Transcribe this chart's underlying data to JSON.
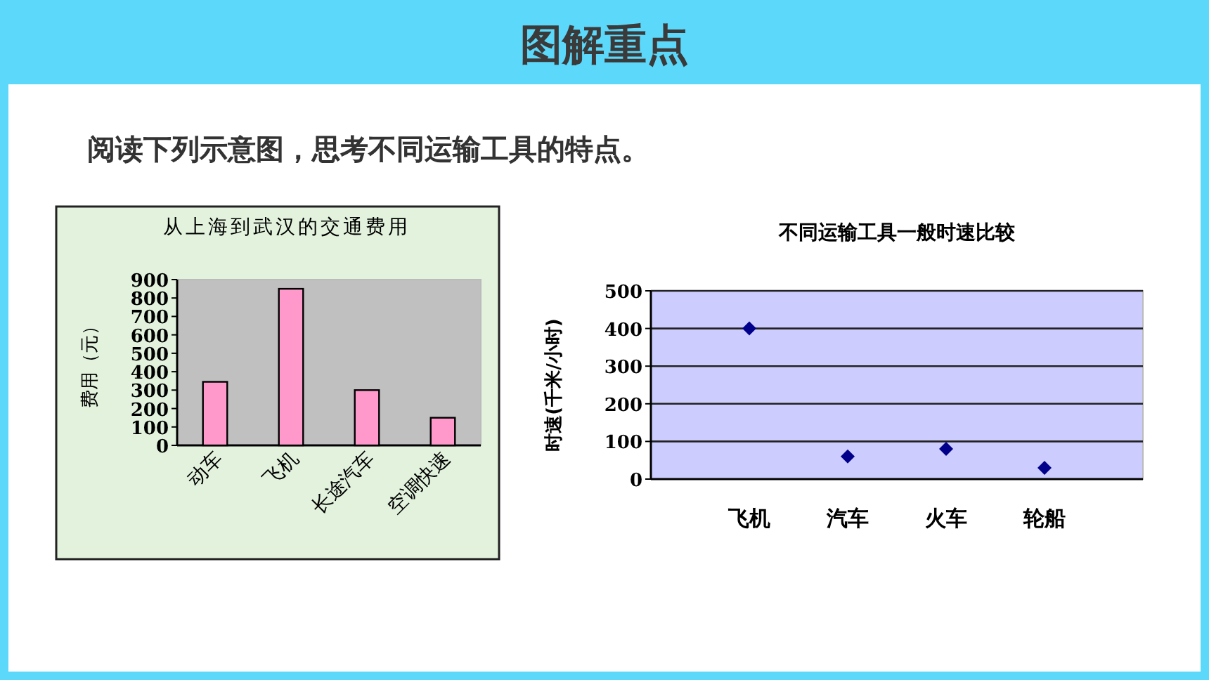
{
  "chart_data": [
    {
      "type": "other",
      "title": "图解重点",
      "subtitle": "阅读下列示意图，思考不同运输工具的特点。"
    },
    {
      "type": "bar",
      "title": "从上海到武汉的交通费用",
      "ylabel": "费用（元）",
      "categories": [
        "动车",
        "飞机",
        "长途汽车",
        "空调快速"
      ],
      "values": [
        345,
        850,
        300,
        150
      ],
      "color": "#ff99cc",
      "ylim": [
        0,
        900
      ],
      "yticks": [
        0,
        100,
        200,
        300,
        400,
        500,
        600,
        700,
        800,
        900
      ]
    },
    {
      "type": "scatter",
      "title": "不同运输工具一般时速比较",
      "ylabel": "时速(千米/小时)",
      "categories": [
        "飞机",
        "汽车",
        "火车",
        "轮船"
      ],
      "values": [
        400,
        60,
        80,
        30
      ],
      "color": "#00008b",
      "ylim": [
        0,
        500
      ],
      "yticks": [
        0,
        100,
        200,
        300,
        400,
        500
      ],
      "grid": "y",
      "marker": "diamond"
    }
  ]
}
